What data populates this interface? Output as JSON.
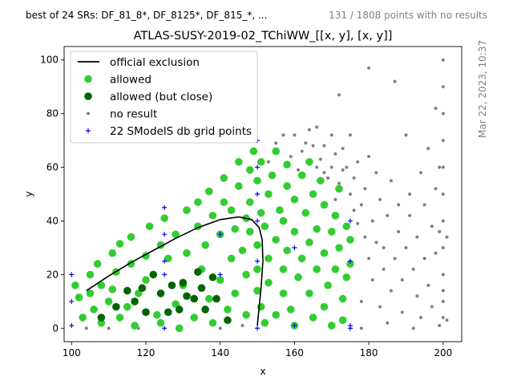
{
  "header": {
    "left_text": "best of 24 SRs: DF_81_8*, DF_8125*, DF_815_*, ...",
    "right_text": "131 / 1808 points with no results",
    "timestamp": "Mar 22, 2023, 10:37"
  },
  "chart_data": {
    "type": "scatter",
    "title": "ATLAS-SUSY-2019-02_TChiWW_[[x, y], [x, y]]",
    "xlabel": "x",
    "ylabel": "y",
    "xlim": [
      98,
      205
    ],
    "ylim": [
      -5,
      105
    ],
    "xticks": [
      100,
      120,
      140,
      160,
      180,
      200
    ],
    "yticks": [
      0,
      20,
      40,
      60,
      80,
      100
    ],
    "grid": false,
    "legend_placement": "top-left",
    "colors": {
      "official_exclusion": "#000000",
      "allowed": "#33cc33",
      "allowed_close": "#006400",
      "no_result": "#808080",
      "grid_points": "#0000ff"
    },
    "series": [
      {
        "name": "official exclusion",
        "kind": "line",
        "points": [
          [
            104,
            14
          ],
          [
            110,
            19.5
          ],
          [
            116,
            24.5
          ],
          [
            122,
            29
          ],
          [
            128,
            33.5
          ],
          [
            134,
            37.5
          ],
          [
            140,
            40.5
          ],
          [
            145,
            41.5
          ],
          [
            148.5,
            40.5
          ],
          [
            150.5,
            37.5
          ],
          [
            151.3,
            33
          ],
          [
            151.5,
            25
          ],
          [
            151,
            15
          ],
          [
            150.5,
            8
          ],
          [
            150,
            1
          ]
        ]
      },
      {
        "name": "allowed",
        "kind": "points",
        "points": [
          [
            101,
            16
          ],
          [
            102,
            11.5
          ],
          [
            103,
            4
          ],
          [
            105,
            13
          ],
          [
            105,
            20
          ],
          [
            106,
            7
          ],
          [
            107,
            24
          ],
          [
            108,
            16
          ],
          [
            108,
            2
          ],
          [
            110,
            10
          ],
          [
            111,
            14.5
          ],
          [
            111,
            28
          ],
          [
            112,
            21
          ],
          [
            113,
            31.5
          ],
          [
            113,
            4
          ],
          [
            115,
            8
          ],
          [
            116,
            24
          ],
          [
            116,
            34
          ],
          [
            117,
            1
          ],
          [
            118,
            13
          ],
          [
            120,
            18
          ],
          [
            120,
            27
          ],
          [
            121,
            38
          ],
          [
            123,
            5
          ],
          [
            124,
            31
          ],
          [
            124,
            2
          ],
          [
            125,
            41
          ],
          [
            126,
            26
          ],
          [
            128,
            9
          ],
          [
            128,
            35
          ],
          [
            129,
            0
          ],
          [
            130,
            16
          ],
          [
            131,
            28
          ],
          [
            131,
            44
          ],
          [
            133,
            4
          ],
          [
            134,
            38
          ],
          [
            134,
            47
          ],
          [
            135,
            22
          ],
          [
            136,
            31
          ],
          [
            137,
            11
          ],
          [
            137,
            51
          ],
          [
            138,
            42
          ],
          [
            138,
            2
          ],
          [
            140,
            18
          ],
          [
            140,
            35
          ],
          [
            141,
            47
          ],
          [
            141,
            56
          ],
          [
            142,
            7
          ],
          [
            143,
            26
          ],
          [
            143,
            44
          ],
          [
            144,
            13
          ],
          [
            144,
            37
          ],
          [
            145,
            53
          ],
          [
            145,
            62
          ],
          [
            146,
            29
          ],
          [
            147,
            5
          ],
          [
            147,
            20
          ],
          [
            147,
            41
          ],
          [
            148,
            36
          ],
          [
            148,
            47
          ],
          [
            148,
            59
          ],
          [
            149,
            66
          ],
          [
            150,
            14
          ],
          [
            150,
            22
          ],
          [
            150,
            31
          ],
          [
            150,
            55
          ],
          [
            151,
            8
          ],
          [
            151,
            43
          ],
          [
            151,
            62
          ],
          [
            152,
            2
          ],
          [
            152,
            38
          ],
          [
            153,
            17
          ],
          [
            153,
            26
          ],
          [
            153,
            50
          ],
          [
            154,
            57
          ],
          [
            155,
            5
          ],
          [
            155,
            33
          ],
          [
            155,
            66
          ],
          [
            156,
            44
          ],
          [
            157,
            13
          ],
          [
            157,
            22
          ],
          [
            157,
            40
          ],
          [
            158,
            29
          ],
          [
            158,
            53
          ],
          [
            158,
            61
          ],
          [
            159,
            7
          ],
          [
            160,
            36
          ],
          [
            160,
            48
          ],
          [
            160,
            1
          ],
          [
            161,
            19
          ],
          [
            162,
            26
          ],
          [
            162,
            57
          ],
          [
            163,
            43
          ],
          [
            164,
            13
          ],
          [
            164,
            32
          ],
          [
            164,
            62
          ],
          [
            165,
            4
          ],
          [
            165,
            50
          ],
          [
            166,
            22
          ],
          [
            166,
            37
          ],
          [
            167,
            55
          ],
          [
            168,
            28
          ],
          [
            168,
            46
          ],
          [
            168,
            8
          ],
          [
            169,
            16
          ],
          [
            170,
            36
          ],
          [
            170,
            1
          ],
          [
            171,
            42
          ],
          [
            171,
            22
          ],
          [
            172,
            30
          ],
          [
            172,
            52
          ],
          [
            173,
            11
          ],
          [
            173,
            3
          ],
          [
            174,
            19
          ],
          [
            174,
            38
          ],
          [
            175,
            24
          ],
          [
            175,
            33
          ]
        ]
      },
      {
        "name": "allowed (but close)",
        "kind": "points",
        "points": [
          [
            108,
            4
          ],
          [
            112,
            8
          ],
          [
            115,
            14
          ],
          [
            117,
            10
          ],
          [
            119,
            15
          ],
          [
            120,
            6
          ],
          [
            122,
            20
          ],
          [
            124,
            13
          ],
          [
            126,
            6
          ],
          [
            127,
            16
          ],
          [
            129,
            7
          ],
          [
            130,
            17
          ],
          [
            131,
            12
          ],
          [
            133,
            11
          ],
          [
            134,
            21
          ],
          [
            135,
            15
          ],
          [
            136,
            7
          ],
          [
            138,
            19
          ],
          [
            139,
            11
          ],
          [
            142,
            3
          ]
        ]
      },
      {
        "name": "no result",
        "kind": "points",
        "points": [
          [
            104,
            0
          ],
          [
            110,
            0
          ],
          [
            118,
            0
          ],
          [
            140,
            0
          ],
          [
            146,
            1
          ],
          [
            153,
            62
          ],
          [
            155,
            69
          ],
          [
            157,
            72
          ],
          [
            159,
            64
          ],
          [
            160,
            72
          ],
          [
            161,
            59
          ],
          [
            162,
            66
          ],
          [
            163,
            69
          ],
          [
            164,
            74
          ],
          [
            165,
            68
          ],
          [
            166,
            60
          ],
          [
            166,
            75
          ],
          [
            167,
            63
          ],
          [
            168,
            58
          ],
          [
            168,
            68
          ],
          [
            169,
            56
          ],
          [
            170,
            60
          ],
          [
            170,
            72
          ],
          [
            171,
            48
          ],
          [
            171,
            65
          ],
          [
            172,
            54
          ],
          [
            172,
            87
          ],
          [
            173,
            59
          ],
          [
            173,
            67
          ],
          [
            174,
            60
          ],
          [
            175,
            50
          ],
          [
            175,
            72
          ],
          [
            176,
            44
          ],
          [
            176,
            56
          ],
          [
            177,
            62
          ],
          [
            177,
            39
          ],
          [
            178,
            46
          ],
          [
            178,
            10
          ],
          [
            178,
            0
          ],
          [
            179,
            34
          ],
          [
            179,
            52
          ],
          [
            180,
            26
          ],
          [
            180,
            64
          ],
          [
            180,
            97
          ],
          [
            181,
            18
          ],
          [
            181,
            40
          ],
          [
            182,
            32
          ],
          [
            182,
            58
          ],
          [
            183,
            8
          ],
          [
            183,
            48
          ],
          [
            184,
            22
          ],
          [
            184,
            30
          ],
          [
            185,
            2
          ],
          [
            185,
            42
          ],
          [
            186,
            14
          ],
          [
            186,
            55
          ],
          [
            187,
            92
          ],
          [
            187,
            26
          ],
          [
            188,
            36
          ],
          [
            188,
            46
          ],
          [
            189,
            6
          ],
          [
            189,
            18
          ],
          [
            190,
            30
          ],
          [
            190,
            72
          ],
          [
            191,
            42
          ],
          [
            191,
            50
          ],
          [
            192,
            22
          ],
          [
            192,
            0
          ],
          [
            193,
            12
          ],
          [
            193,
            34
          ],
          [
            194,
            4
          ],
          [
            194,
            58
          ],
          [
            195,
            46
          ],
          [
            195,
            26
          ],
          [
            196,
            67
          ],
          [
            196,
            16
          ],
          [
            197,
            38
          ],
          [
            197,
            8
          ],
          [
            198,
            52
          ],
          [
            198,
            82
          ],
          [
            198,
            28
          ],
          [
            199,
            1
          ],
          [
            199,
            36
          ],
          [
            199,
            60
          ],
          [
            200,
            4
          ],
          [
            200,
            10
          ],
          [
            200,
            14
          ],
          [
            200,
            20
          ],
          [
            200,
            30
          ],
          [
            200,
            40
          ],
          [
            200,
            50
          ],
          [
            200,
            60
          ],
          [
            200,
            70
          ],
          [
            200,
            80
          ],
          [
            200,
            90
          ],
          [
            200,
            100
          ],
          [
            201,
            3
          ],
          [
            201,
            34
          ]
        ]
      },
      {
        "name": "22 SModelS db grid points",
        "kind": "points",
        "points": [
          [
            100,
            20
          ],
          [
            100,
            10
          ],
          [
            100,
            1
          ],
          [
            125,
            45
          ],
          [
            125,
            35
          ],
          [
            125,
            25
          ],
          [
            125,
            20
          ],
          [
            125,
            0
          ],
          [
            140,
            35
          ],
          [
            140,
            20
          ],
          [
            150,
            70
          ],
          [
            150,
            60
          ],
          [
            150,
            50
          ],
          [
            150,
            40
          ],
          [
            150,
            25
          ],
          [
            150,
            0
          ],
          [
            160,
            30
          ],
          [
            160,
            1
          ],
          [
            175,
            40
          ],
          [
            175,
            25
          ],
          [
            175,
            1
          ],
          [
            175,
            0
          ]
        ]
      }
    ]
  }
}
